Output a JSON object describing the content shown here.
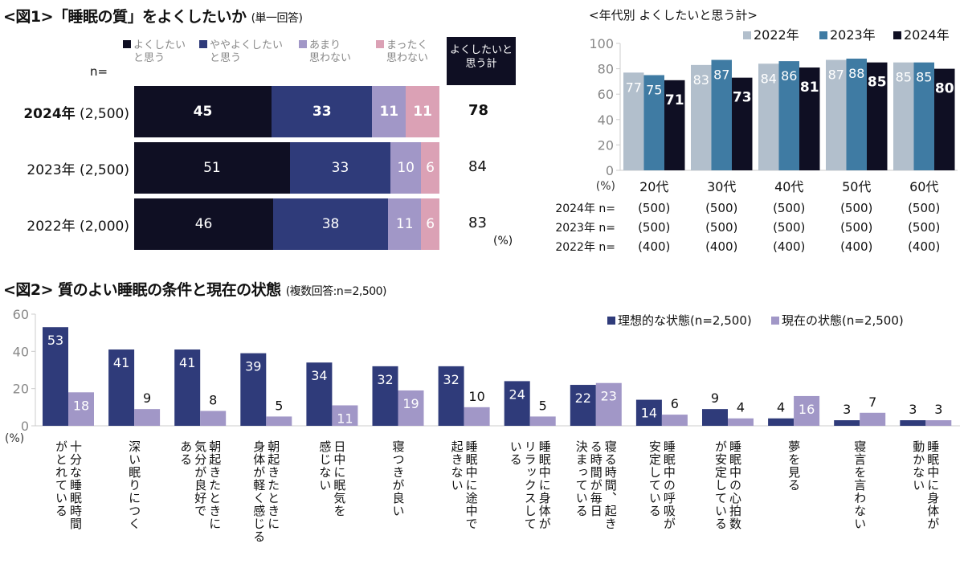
{
  "fig1": {
    "title": "<図1>「睡眠の質」をよくしたいか",
    "subtitle": "(単一回答)",
    "n_label": "n=",
    "total_header": "よくしたいと\n思う計",
    "unit": "(%)",
    "legend": [
      {
        "label": "よくしたい\nと思う",
        "color": "#0f0f23"
      },
      {
        "label": "ややよくしたい\nと思う",
        "color": "#2f3b7a"
      },
      {
        "label": "あまり\n思わない",
        "color": "#a197c7"
      },
      {
        "label": "まったく\n思わない",
        "color": "#dba1b5"
      }
    ],
    "rows": [
      {
        "year": "2024年",
        "n": "(2,500)",
        "values": [
          45,
          33,
          11,
          11
        ],
        "total": "78",
        "bold": true
      },
      {
        "year": "2023年",
        "n": "(2,500)",
        "values": [
          51,
          33,
          10,
          6
        ],
        "total": "84",
        "bold": false
      },
      {
        "year": "2022年",
        "n": "(2,000)",
        "values": [
          46,
          38,
          11,
          6
        ],
        "total": "83",
        "bold": false
      }
    ]
  },
  "chart_data": [
    {
      "type": "bar",
      "title": "<年代別 よくしたいと思う計>",
      "categories": [
        "20代",
        "30代",
        "40代",
        "50代",
        "60代"
      ],
      "series": [
        {
          "name": "2022年",
          "color": "#b2bfcc",
          "values": [
            77,
            83,
            84,
            87,
            85
          ]
        },
        {
          "name": "2023年",
          "color": "#3f7ba3",
          "values": [
            75,
            87,
            86,
            88,
            85
          ]
        },
        {
          "name": "2024年",
          "color": "#0f0f23",
          "values": [
            71,
            73,
            81,
            85,
            80
          ]
        }
      ],
      "ylim": [
        0,
        100
      ],
      "yticks": [
        0,
        20,
        40,
        60,
        80,
        100
      ],
      "ylabel": "(%)",
      "legend_position": "top-right",
      "n_rows": [
        {
          "label": "2024年 n=",
          "values": [
            "(500)",
            "(500)",
            "(500)",
            "(500)",
            "(500)"
          ]
        },
        {
          "label": "2023年 n=",
          "values": [
            "(500)",
            "(500)",
            "(500)",
            "(500)",
            "(500)"
          ]
        },
        {
          "label": "2022年 n=",
          "values": [
            "(400)",
            "(400)",
            "(400)",
            "(400)",
            "(400)"
          ]
        }
      ]
    },
    {
      "type": "bar",
      "title": "<図2> 質のよい睡眠の条件と現在の状態",
      "subtitle": "(複数回答:n=2,500)",
      "categories": [
        "十分な睡眠時間\nがとれている",
        "深い眠りにつく",
        "朝起きたときに\n気分が良好で\nある",
        "朝起きたときに\n身体が軽く感じる",
        "日中に眠気を\n感じない",
        "寝つきが良い",
        "睡眠中に途中で\n起きない",
        "睡眠中に身体が\nリラックスして\nいる",
        "寝る時間、起き\nる時間が毎日\n決まっている",
        "睡眠中の呼吸が\n安定している",
        "睡眠中の心拍数\nが安定している",
        "夢を見る",
        "寝言を言わない",
        "睡眠中に身体が\n動かない"
      ],
      "series": [
        {
          "name": "理想的な状態(n=2,500)",
          "color": "#2f3b7a",
          "values": [
            53,
            41,
            41,
            39,
            34,
            32,
            32,
            24,
            22,
            14,
            9,
            4,
            3,
            3
          ]
        },
        {
          "name": "現在の状態(n=2,500)",
          "color": "#a197c7",
          "values": [
            18,
            9,
            8,
            5,
            11,
            19,
            10,
            5,
            23,
            6,
            4,
            16,
            7,
            3
          ]
        }
      ],
      "ylim": [
        0,
        60
      ],
      "yticks": [
        0,
        20,
        40,
        60
      ],
      "ylabel": "(%)",
      "legend_position": "top-right"
    }
  ]
}
